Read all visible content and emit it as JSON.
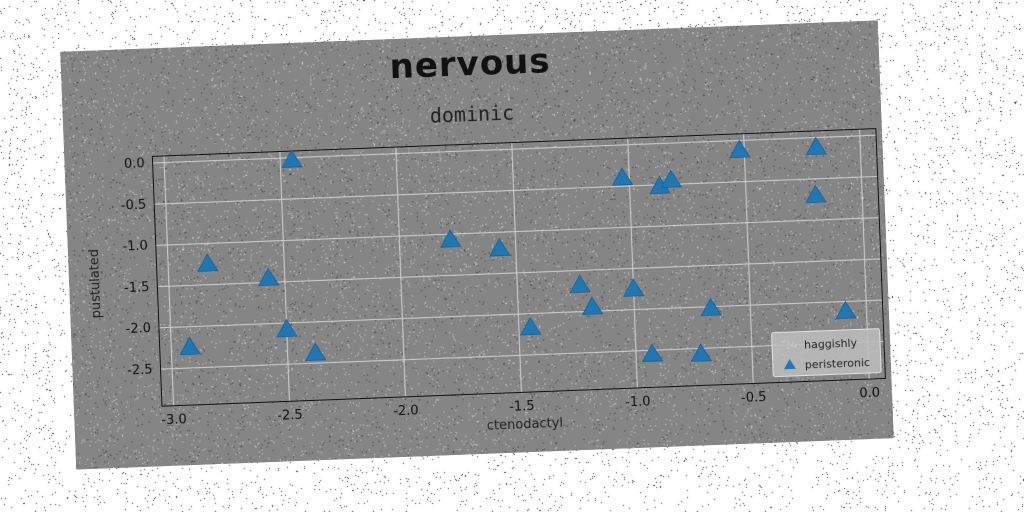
{
  "chart_data": {
    "type": "scatter",
    "title": "nervous",
    "subtitle": "dominic",
    "xlabel": "ctenodactyl",
    "ylabel": "pustulated",
    "xlim": [
      -3.05,
      0.07
    ],
    "ylim": [
      -2.95,
      0.08
    ],
    "xticks": [
      "-3.0",
      "-2.5",
      "-2.0",
      "-1.5",
      "-1.0",
      "-0.5",
      "0.0"
    ],
    "xtick_values": [
      -3.0,
      -2.5,
      -2.0,
      -1.5,
      -1.0,
      -0.5,
      0.0
    ],
    "yticks": [
      "0.0",
      "-0.5",
      "-1.0",
      "-1.5",
      "-2.0",
      "-2.5"
    ],
    "ytick_values": [
      0.0,
      -0.5,
      -1.0,
      -1.5,
      -2.0,
      -2.5
    ],
    "grid": true,
    "legend_position": "lower-right",
    "series": [
      {
        "name": "haggishly",
        "marker": "dots",
        "color": "#cccccc",
        "x": [],
        "y": []
      },
      {
        "name": "peristeronic",
        "marker": "triangle",
        "color": "#1f77b4",
        "x": [
          -2.45,
          -2.83,
          -2.57,
          -2.92,
          -2.5,
          -2.38,
          -1.78,
          -1.57,
          -1.45,
          -1.23,
          -1.18,
          -1.03,
          -1.0,
          -0.93,
          -0.87,
          -0.82,
          -0.72,
          -0.67,
          -0.52,
          -0.19,
          -0.2,
          -0.09
        ],
        "y": [
          -0.03,
          -1.25,
          -1.45,
          -2.25,
          -2.08,
          -2.38,
          -1.07,
          -1.2,
          -2.17,
          -1.68,
          -1.95,
          -0.4,
          -1.75,
          -2.55,
          -0.52,
          -0.45,
          -2.57,
          -2.02,
          -0.12,
          -0.12,
          -0.7,
          -2.12
        ]
      }
    ]
  }
}
